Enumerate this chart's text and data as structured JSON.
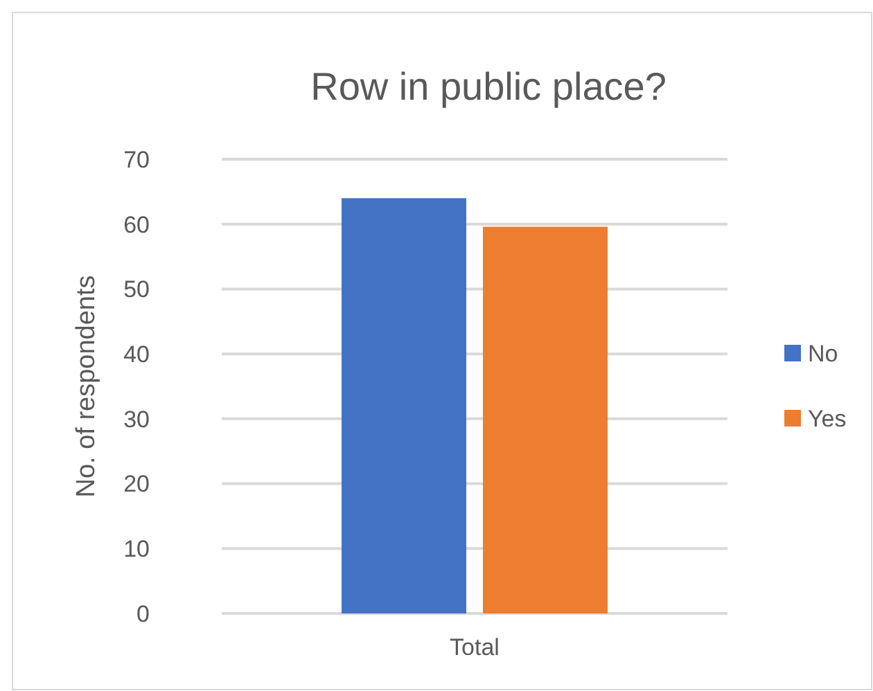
{
  "chart_data": {
    "type": "bar",
    "title": "Row in public place?",
    "ylabel": "No. of respondents",
    "categories": [
      "Total"
    ],
    "series": [
      {
        "name": "No",
        "color": "#4472c4",
        "values": [
          64
        ]
      },
      {
        "name": "Yes",
        "color": "#ed7d31",
        "values": [
          59.6
        ]
      }
    ],
    "ylim": [
      0,
      70
    ],
    "yticks": [
      0,
      10,
      20,
      30,
      40,
      50,
      60,
      70
    ],
    "grid": "y",
    "legend": "right"
  }
}
